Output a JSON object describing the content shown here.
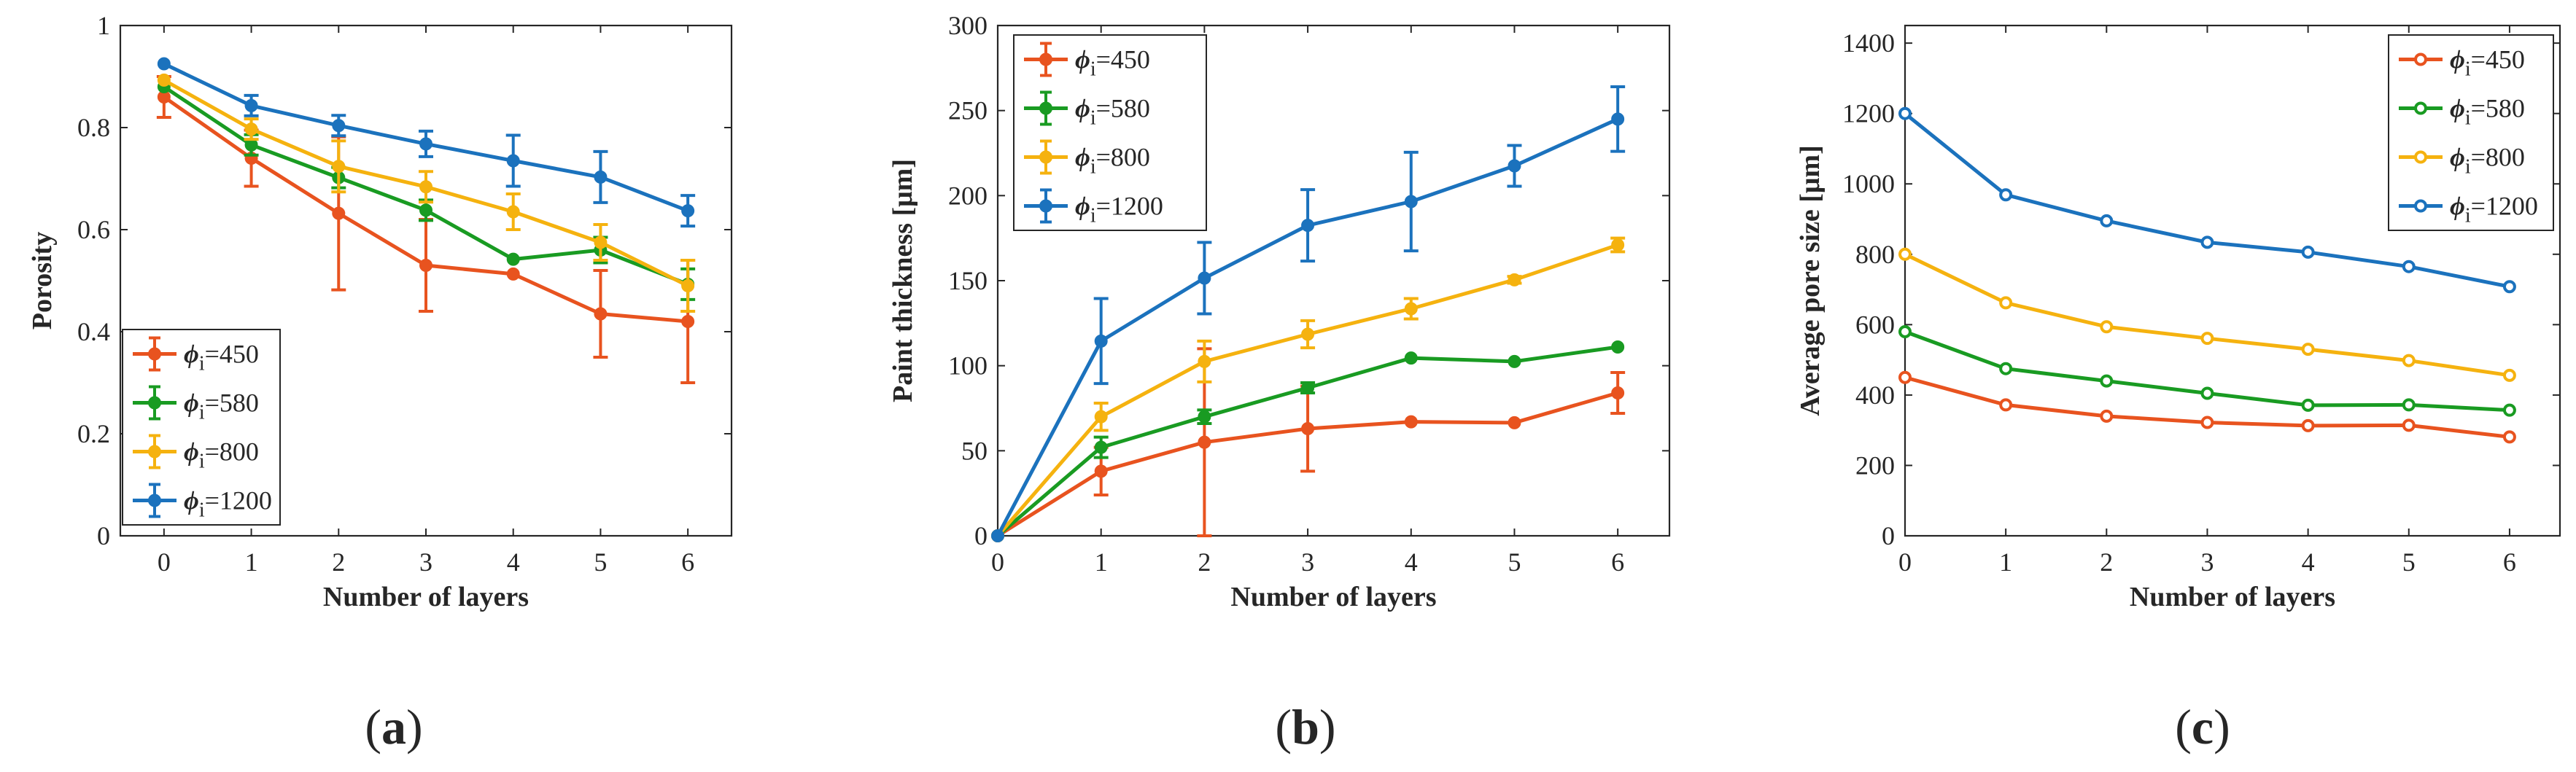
{
  "colors": {
    "phi450": "#E8531F",
    "phi580": "#199B22",
    "phi800": "#F5B20F",
    "phi1200": "#1B72BD",
    "axis": "#262626"
  },
  "chart_data": [
    {
      "type": "line",
      "panel_label": "(a)",
      "panel_letter": "a",
      "title": "",
      "xlabel": "Number of layers",
      "ylabel": "Porosity",
      "xlim": [
        -0.5,
        6.5
      ],
      "ylim": [
        0,
        1
      ],
      "xticks": [
        0,
        1,
        2,
        3,
        4,
        5,
        6
      ],
      "yticks": [
        0,
        0.2,
        0.4,
        0.6,
        0.8,
        1
      ],
      "ytick_labels": [
        "0",
        "0.2",
        "0.4",
        "0.6",
        "0.8",
        "1"
      ],
      "error_bars": true,
      "legend_location": "bottom-left",
      "x": [
        0,
        1,
        2,
        3,
        4,
        5,
        6
      ],
      "series": [
        {
          "name_sym": "ϕ",
          "name_sub": "i",
          "name_val": "=450",
          "color_key": "phi450",
          "values": [
            0.86,
            0.74,
            0.632,
            0.53,
            0.513,
            0.435,
            0.42
          ],
          "errors": [
            0.04,
            0.055,
            0.15,
            0.09,
            0.0,
            0.085,
            0.12
          ]
        },
        {
          "name_sym": "ϕ",
          "name_sub": "i",
          "name_val": "=580",
          "color_key": "phi580",
          "values": [
            0.88,
            0.766,
            0.702,
            0.638,
            0.542,
            0.56,
            0.493
          ],
          "errors": [
            0.0,
            0.02,
            0.02,
            0.02,
            0.0,
            0.025,
            0.03
          ]
        },
        {
          "name_sym": "ϕ",
          "name_sub": "i",
          "name_val": "=800",
          "color_key": "phi800",
          "values": [
            0.893,
            0.797,
            0.724,
            0.684,
            0.635,
            0.575,
            0.49
          ],
          "errors": [
            0.0,
            0.02,
            0.05,
            0.03,
            0.035,
            0.035,
            0.05
          ]
        },
        {
          "name_sym": "ϕ",
          "name_sub": "i",
          "name_val": "=1200",
          "color_key": "phi1200",
          "values": [
            0.925,
            0.843,
            0.804,
            0.768,
            0.735,
            0.703,
            0.637
          ],
          "errors": [
            0.0,
            0.02,
            0.02,
            0.025,
            0.05,
            0.05,
            0.03
          ]
        }
      ]
    },
    {
      "type": "line",
      "panel_label": "(b)",
      "panel_letter": "b",
      "title": "",
      "xlabel": "Number of layers",
      "ylabel": "Paint thickness [μm]",
      "xlim": [
        0,
        6.5
      ],
      "ylim": [
        0,
        300
      ],
      "xticks": [
        0,
        1,
        2,
        3,
        4,
        5,
        6
      ],
      "yticks": [
        0,
        50,
        100,
        150,
        200,
        250,
        300
      ],
      "ytick_labels": [
        "0",
        "50",
        "100",
        "150",
        "200",
        "250",
        "300"
      ],
      "error_bars": true,
      "legend_location": "top-left",
      "x": [
        0,
        1,
        2,
        3,
        4,
        5,
        6
      ],
      "series": [
        {
          "name_sym": "ϕ",
          "name_sub": "i",
          "name_val": "=450",
          "color_key": "phi450",
          "values": [
            0,
            38,
            55,
            63,
            67,
            66.5,
            84
          ],
          "errors": [
            0,
            14,
            55,
            25,
            0,
            0,
            12
          ]
        },
        {
          "name_sym": "ϕ",
          "name_sub": "i",
          "name_val": "=580",
          "color_key": "phi580",
          "values": [
            0,
            52,
            70,
            87,
            104.5,
            102.5,
            111
          ],
          "errors": [
            0,
            6,
            4,
            3,
            0,
            0,
            0
          ]
        },
        {
          "name_sym": "ϕ",
          "name_sub": "i",
          "name_val": "=800",
          "color_key": "phi800",
          "values": [
            0,
            70,
            102.5,
            118.5,
            133.5,
            150.5,
            171
          ],
          "errors": [
            0,
            8,
            12,
            8,
            6,
            2,
            4
          ]
        },
        {
          "name_sym": "ϕ",
          "name_sub": "i",
          "name_val": "=1200",
          "color_key": "phi1200",
          "values": [
            0,
            114.5,
            151.5,
            182.5,
            196.5,
            217.5,
            245
          ],
          "errors": [
            0,
            25,
            21,
            21,
            29,
            12,
            19
          ]
        }
      ]
    },
    {
      "type": "line",
      "panel_label": "(c)",
      "panel_letter": "c",
      "title": "",
      "xlabel": "Number of layers",
      "ylabel": "Average pore size [μm]",
      "xlim": [
        0,
        6.5
      ],
      "ylim": [
        0,
        1450
      ],
      "xticks": [
        0,
        1,
        2,
        3,
        4,
        5,
        6
      ],
      "yticks": [
        0,
        200,
        400,
        600,
        800,
        1000,
        1200,
        1400
      ],
      "ytick_labels": [
        "0",
        "200",
        "400",
        "600",
        "800",
        "1000",
        "1200",
        "1400"
      ],
      "error_bars": false,
      "legend_location": "top-right",
      "x": [
        0,
        1,
        2,
        3,
        4,
        5,
        6
      ],
      "series": [
        {
          "name_sym": "ϕ",
          "name_sub": "i",
          "name_val": "=450",
          "color_key": "phi450",
          "values": [
            450,
            372,
            340,
            322,
            313,
            314,
            281
          ]
        },
        {
          "name_sym": "ϕ",
          "name_sub": "i",
          "name_val": "=580",
          "color_key": "phi580",
          "values": [
            580,
            475,
            440,
            405,
            371,
            372,
            357
          ]
        },
        {
          "name_sym": "ϕ",
          "name_sub": "i",
          "name_val": "=800",
          "color_key": "phi800",
          "values": [
            800,
            662,
            594,
            561,
            530,
            498,
            456
          ]
        },
        {
          "name_sym": "ϕ",
          "name_sub": "i",
          "name_val": "=1200",
          "color_key": "phi1200",
          "values": [
            1200,
            969,
            895,
            834,
            806,
            765,
            708
          ]
        }
      ]
    }
  ]
}
